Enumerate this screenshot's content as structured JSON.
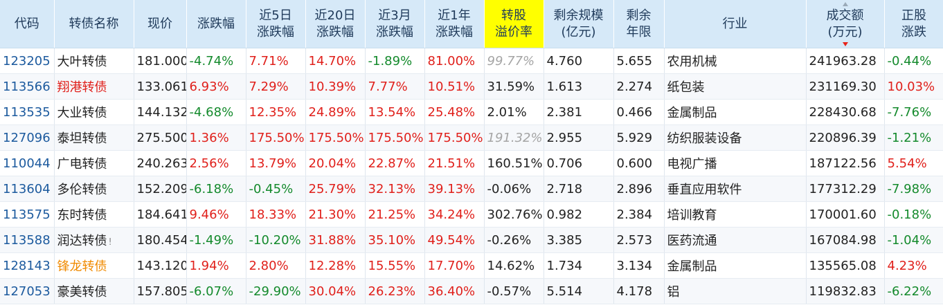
{
  "headers": [
    "代码",
    "转债名称",
    "现价",
    "涨跌幅",
    "近5日\n涨跌幅",
    "近20日\n涨跌幅",
    "近3月\n涨跌幅",
    "近1年\n涨跌幅",
    "转股\n溢价率",
    "剩余规模\n(亿元)",
    "剩余\n年限",
    "行业",
    "成交额\n(万元)",
    "正股\n涨跌"
  ],
  "colors": {
    "header_bg": "#d6e9f8",
    "highlight_header": "#ffff00",
    "up": "#e0201b",
    "down": "#148a2c",
    "code": "#1c5a9e",
    "name_orange": "#f08a00"
  },
  "sort_icon": "sort-desc-icon",
  "rows": [
    {
      "code": "123205",
      "name": "大叶转债",
      "name_color": "",
      "flag": "",
      "price": "181.000",
      "chg": "-4.74%",
      "chg5": "7.71%",
      "chg20": "14.70%",
      "chg3m": "-1.89%",
      "chg1y": "81.00%",
      "premium": "99.77%",
      "premium_style": "gray",
      "scale": "4.760",
      "years": "5.655",
      "industry": "农用机械",
      "turnover": "241963.28",
      "stock_chg": "-0.44%"
    },
    {
      "code": "113566",
      "name": "翔港转债",
      "name_color": "red",
      "flag": "",
      "price": "133.061",
      "chg": "6.93%",
      "chg5": "7.29%",
      "chg20": "10.39%",
      "chg3m": "7.77%",
      "chg1y": "10.51%",
      "premium": "31.59%",
      "premium_style": "",
      "scale": "1.613",
      "years": "2.274",
      "industry": "纸包装",
      "turnover": "231169.30",
      "stock_chg": "10.03%"
    },
    {
      "code": "113535",
      "name": "大业转债",
      "name_color": "",
      "flag": "",
      "price": "144.132",
      "chg": "-4.68%",
      "chg5": "12.35%",
      "chg20": "24.89%",
      "chg3m": "13.54%",
      "chg1y": "25.48%",
      "premium": "2.01%",
      "premium_style": "",
      "scale": "2.381",
      "years": "0.466",
      "industry": "金属制品",
      "turnover": "228430.68",
      "stock_chg": "-7.76%"
    },
    {
      "code": "127096",
      "name": "泰坦转债",
      "name_color": "",
      "flag": "",
      "price": "275.500",
      "chg": "1.36%",
      "chg5": "175.50%",
      "chg20": "175.50%",
      "chg3m": "175.50%",
      "chg1y": "175.50%",
      "premium": "191.32%",
      "premium_style": "gray",
      "scale": "2.955",
      "years": "5.929",
      "industry": "纺织服装设备",
      "turnover": "220896.39",
      "stock_chg": "-1.21%"
    },
    {
      "code": "110044",
      "name": "广电转债",
      "name_color": "",
      "flag": "",
      "price": "240.263",
      "chg": "2.56%",
      "chg5": "13.79%",
      "chg20": "20.04%",
      "chg3m": "22.87%",
      "chg1y": "21.51%",
      "premium": "160.51%",
      "premium_style": "",
      "scale": "0.706",
      "years": "0.600",
      "industry": "电视广播",
      "turnover": "187122.56",
      "stock_chg": "5.54%"
    },
    {
      "code": "113604",
      "name": "多伦转债",
      "name_color": "",
      "flag": "",
      "price": "152.209",
      "chg": "-6.18%",
      "chg5": "-0.45%",
      "chg20": "25.79%",
      "chg3m": "32.13%",
      "chg1y": "39.13%",
      "premium": "-0.06%",
      "premium_style": "",
      "scale": "2.718",
      "years": "2.896",
      "industry": "垂直应用软件",
      "turnover": "177312.29",
      "stock_chg": "-7.98%"
    },
    {
      "code": "113575",
      "name": "东时转债",
      "name_color": "",
      "flag": "",
      "price": "184.641",
      "chg": "9.46%",
      "chg5": "18.33%",
      "chg20": "21.30%",
      "chg3m": "21.25%",
      "chg1y": "34.24%",
      "premium": "302.76%",
      "premium_style": "",
      "scale": "0.982",
      "years": "2.384",
      "industry": "培训教育",
      "turnover": "170001.60",
      "stock_chg": "-0.18%"
    },
    {
      "code": "113588",
      "name": "润达转债",
      "name_color": "",
      "flag": "!",
      "price": "180.454",
      "chg": "-1.49%",
      "chg5": "-10.20%",
      "chg20": "31.88%",
      "chg3m": "35.10%",
      "chg1y": "49.54%",
      "premium": "-0.26%",
      "premium_style": "",
      "scale": "3.385",
      "years": "2.573",
      "industry": "医药流通",
      "turnover": "167084.98",
      "stock_chg": "-1.04%"
    },
    {
      "code": "128143",
      "name": "锋龙转债",
      "name_color": "orange",
      "flag": "",
      "price": "143.120",
      "chg": "1.94%",
      "chg5": "2.80%",
      "chg20": "12.28%",
      "chg3m": "15.55%",
      "chg1y": "17.70%",
      "premium": "14.62%",
      "premium_style": "",
      "scale": "1.734",
      "years": "3.134",
      "industry": "金属制品",
      "turnover": "135565.08",
      "stock_chg": "4.23%"
    },
    {
      "code": "127053",
      "name": "豪美转债",
      "name_color": "",
      "flag": "",
      "price": "157.805",
      "chg": "-6.07%",
      "chg5": "-29.90%",
      "chg20": "30.04%",
      "chg3m": "26.23%",
      "chg1y": "36.40%",
      "premium": "-0.57%",
      "premium_style": "",
      "scale": "5.514",
      "years": "4.178",
      "industry": "铝",
      "turnover": "119832.83",
      "stock_chg": "-6.22%"
    }
  ]
}
